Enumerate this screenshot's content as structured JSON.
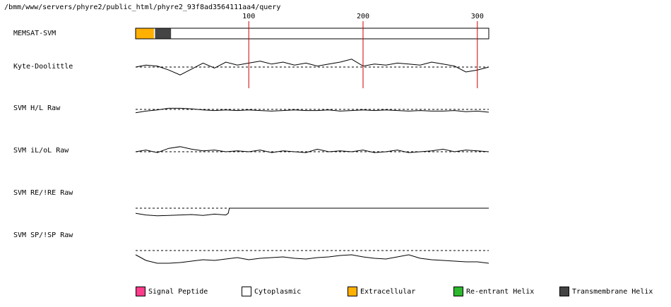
{
  "title": "/bmm/www/servers/phyre2/public_html/phyre2_93f8ad3564111aa4/query",
  "chart_data": {
    "type": "line",
    "title": "/bmm/www/servers/phyre2/public_html/phyre2_93f8ad3564111aa4/query",
    "sequence_length": 310,
    "xlim": [
      1,
      310
    ],
    "x_ticks": [
      100,
      200,
      300
    ],
    "tracks": [
      {
        "id": "memsat",
        "label": "MEMSAT-SVM",
        "kind": "topology",
        "segments": [
          {
            "type": "Extracellular",
            "start": 1,
            "end": 17
          },
          {
            "type": "Transmembrane Helix",
            "start": 18,
            "end": 32
          },
          {
            "type": "Cytoplasmic",
            "start": 33,
            "end": 310
          }
        ]
      },
      {
        "id": "kd",
        "label": "Kyte-Doolittle",
        "kind": "profile",
        "x": [
          1,
          10,
          20,
          30,
          40,
          50,
          60,
          70,
          80,
          90,
          100,
          110,
          120,
          130,
          140,
          150,
          160,
          170,
          180,
          190,
          200,
          210,
          220,
          230,
          240,
          250,
          260,
          270,
          280,
          290,
          300,
          310
        ],
        "values": [
          0,
          0.2,
          0.1,
          -0.3,
          -0.8,
          -0.2,
          0.4,
          -0.1,
          0.5,
          0.2,
          0.4,
          0.6,
          0.3,
          0.5,
          0.2,
          0.4,
          0.1,
          0.3,
          0.5,
          0.8,
          0.1,
          0.3,
          0.2,
          0.4,
          0.3,
          0.2,
          0.5,
          0.3,
          0.1,
          -0.5,
          -0.3,
          0
        ]
      },
      {
        "id": "hl",
        "label": "SVM H/L Raw",
        "kind": "profile",
        "x": [
          1,
          10,
          20,
          30,
          40,
          50,
          60,
          70,
          80,
          90,
          100,
          110,
          120,
          130,
          140,
          150,
          160,
          170,
          180,
          190,
          200,
          210,
          220,
          230,
          240,
          250,
          260,
          270,
          280,
          290,
          300,
          310
        ],
        "values": [
          -0.6,
          -0.3,
          -0.1,
          0.2,
          0.2,
          0.1,
          -0.1,
          -0.2,
          -0.1,
          -0.2,
          -0.1,
          -0.2,
          -0.3,
          -0.2,
          -0.1,
          -0.2,
          -0.2,
          -0.1,
          -0.3,
          -0.2,
          -0.1,
          -0.2,
          -0.1,
          -0.2,
          -0.3,
          -0.2,
          -0.3,
          -0.3,
          -0.2,
          -0.4,
          -0.3,
          -0.5
        ]
      },
      {
        "id": "il",
        "label": "SVM iL/oL Raw",
        "kind": "profile",
        "x": [
          1,
          10,
          20,
          30,
          40,
          50,
          60,
          70,
          80,
          90,
          100,
          110,
          120,
          130,
          140,
          150,
          160,
          170,
          180,
          190,
          200,
          210,
          220,
          230,
          240,
          250,
          260,
          270,
          280,
          290,
          300,
          310
        ],
        "values": [
          0,
          0.2,
          -0.1,
          0.4,
          0.6,
          0.3,
          0.1,
          0.2,
          0,
          0.1,
          0,
          0.2,
          -0.1,
          0.1,
          0,
          -0.1,
          0.3,
          0,
          0.1,
          0,
          0.2,
          -0.1,
          0,
          0.2,
          -0.1,
          0,
          0.1,
          0.3,
          0,
          0.2,
          0.1,
          0
        ]
      },
      {
        "id": "re",
        "label": "SVM RE/!RE Raw",
        "kind": "profile",
        "x": [
          1,
          10,
          20,
          30,
          40,
          50,
          60,
          70,
          80,
          82,
          83,
          100,
          200,
          310
        ],
        "values": [
          -0.6,
          -0.8,
          -0.9,
          -0.85,
          -0.8,
          -0.75,
          -0.85,
          -0.7,
          -0.8,
          -0.6,
          0,
          0,
          0,
          0
        ]
      },
      {
        "id": "sp",
        "label": "SVM SP/!SP Raw",
        "kind": "profile",
        "x": [
          1,
          10,
          20,
          30,
          40,
          50,
          60,
          70,
          80,
          90,
          100,
          110,
          120,
          130,
          140,
          150,
          160,
          170,
          180,
          190,
          200,
          210,
          220,
          230,
          240,
          250,
          260,
          270,
          280,
          290,
          300,
          310
        ],
        "values": [
          -0.6,
          -1.4,
          -1.8,
          -1.8,
          -1.7,
          -1.5,
          -1.3,
          -1.4,
          -1.2,
          -1.0,
          -1.3,
          -1.1,
          -1.0,
          -0.9,
          -1.1,
          -1.2,
          -1.0,
          -0.9,
          -0.7,
          -0.6,
          -0.9,
          -1.1,
          -1.2,
          -0.9,
          -0.6,
          -1.1,
          -1.3,
          -1.4,
          -1.5,
          -1.6,
          -1.6,
          -1.8
        ]
      }
    ],
    "legend": [
      {
        "label": "Signal Peptide",
        "color": "#ff3d8b"
      },
      {
        "label": "Cytoplasmic",
        "color": "#ffffff"
      },
      {
        "label": "Extracellular",
        "color": "#ffb000"
      },
      {
        "label": "Re-entrant Helix",
        "color": "#2db82d"
      },
      {
        "label": "Transmembrane Helix",
        "color": "#444444"
      }
    ],
    "marker_color": "#cc0000"
  }
}
